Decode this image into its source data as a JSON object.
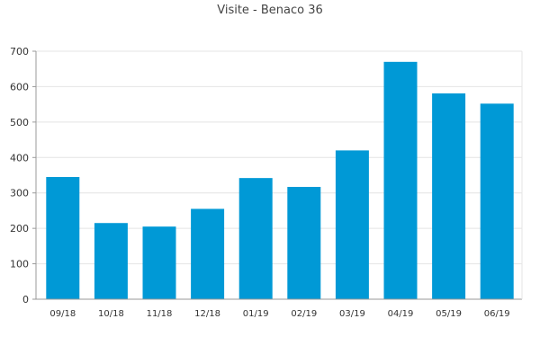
{
  "chart_data": {
    "type": "bar",
    "title": "Visite - Benaco 36",
    "xlabel": "",
    "ylabel": "",
    "categories": [
      "09/18",
      "10/18",
      "11/18",
      "12/18",
      "01/19",
      "02/19",
      "03/19",
      "04/19",
      "05/19",
      "06/19"
    ],
    "values": [
      345,
      215,
      205,
      255,
      342,
      317,
      420,
      670,
      581,
      552
    ],
    "ylim": [
      0,
      700
    ],
    "yticks": [
      0,
      100,
      200,
      300,
      400,
      500,
      600,
      700
    ],
    "grid": true,
    "bar_color": "#0099d6",
    "gridline_color": "#e4e4e4",
    "axis_color": "#999999",
    "text_color": "#333333"
  }
}
